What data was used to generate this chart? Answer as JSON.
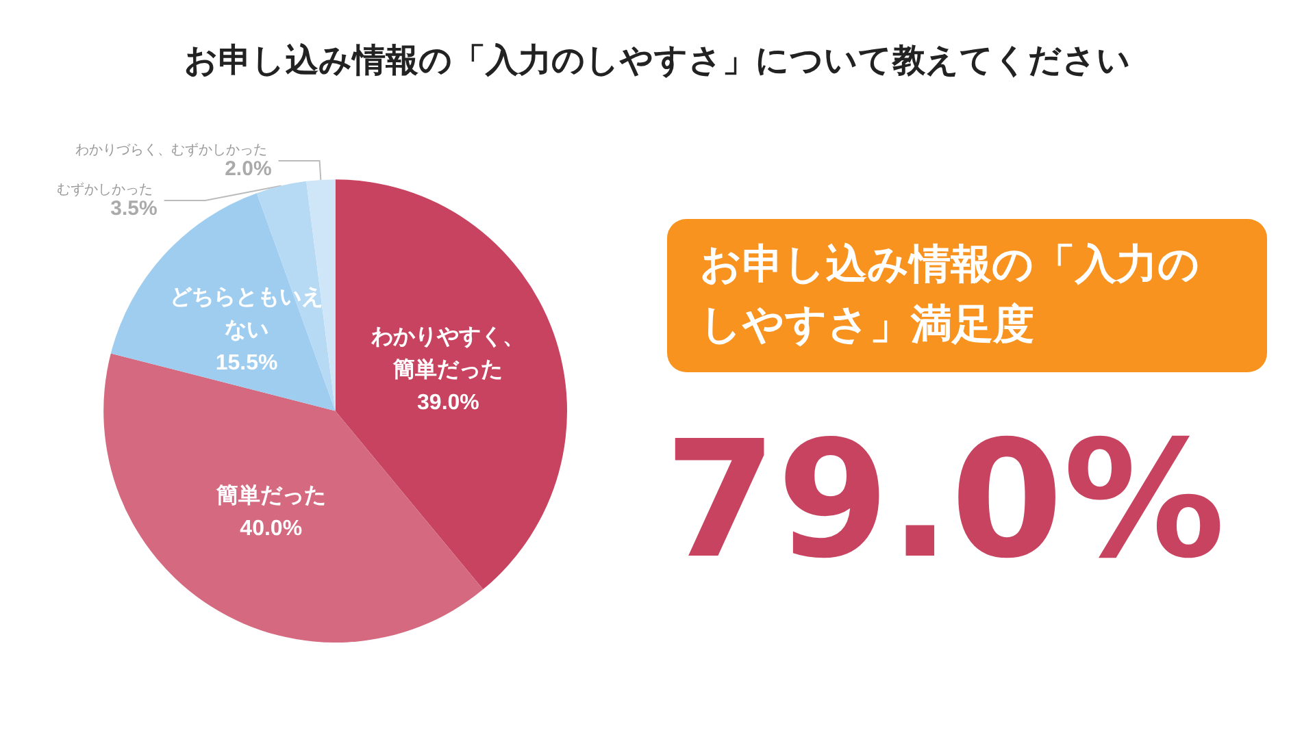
{
  "chart_data": {
    "type": "pie",
    "title": "お申し込み情報の「入力のしやすさ」について教えてください",
    "categories": [
      "わかりやすく、簡単だった",
      "簡単だった",
      "どちらともいえない",
      "むずかしかった",
      "わかりづらく、むずかしかった"
    ],
    "values": [
      39.0,
      40.0,
      15.5,
      3.5,
      2.0
    ],
    "value_labels": [
      "39.0%",
      "40.0%",
      "15.5%",
      "3.5%",
      "2.0%"
    ],
    "colors": [
      "#c8435f",
      "#d4697f",
      "#9fcdef",
      "#b7daf4",
      "#cfe6f8"
    ],
    "annotations": [
      "お申し込み情報の「入力のしやすさ」満足度",
      "79.0%"
    ]
  }
}
